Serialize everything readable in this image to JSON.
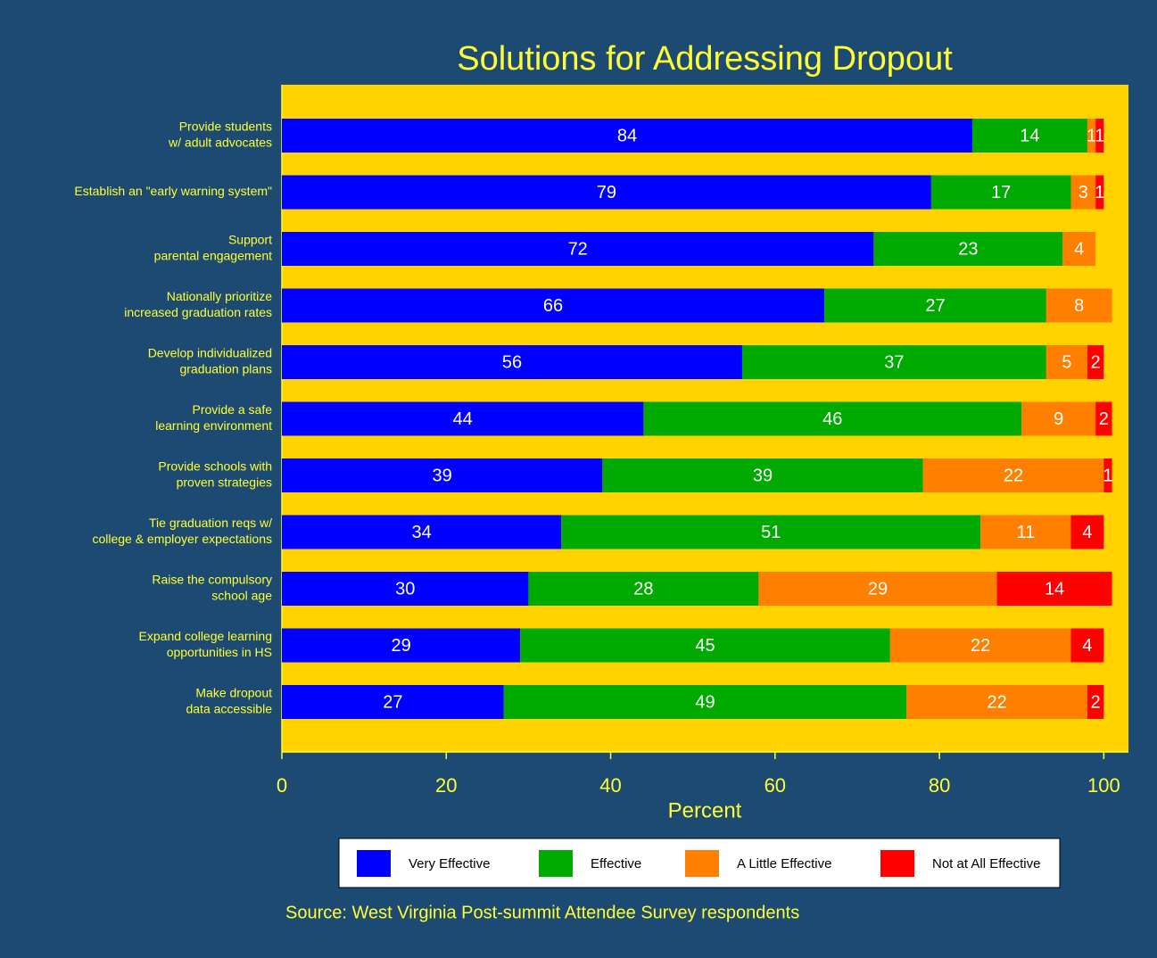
{
  "chart_data": {
    "type": "stacked-bar-horizontal",
    "title": "Solutions for Addressing Dropout",
    "x_label": "Percent",
    "source": "Source: West Virginia Post-summit Attendee Survey respondents",
    "categories": [
      [
        "Provide students",
        "w/ adult advocates"
      ],
      [
        "Establish an \"early warning system\""
      ],
      [
        "Support",
        "parental engagement"
      ],
      [
        "Nationally prioritize",
        "increased graduation rates"
      ],
      [
        "Develop individualized",
        "graduation plans"
      ],
      [
        "Provide a safe",
        "learning environment"
      ],
      [
        "Provide schools with",
        "proven strategies"
      ],
      [
        "Tie graduation reqs w/",
        "college & employer expectations"
      ],
      [
        "Raise the compulsory",
        "school age"
      ],
      [
        "Expand college learning",
        "opportunities in HS"
      ],
      [
        "Make dropout",
        "data accessible"
      ]
    ],
    "series": [
      {
        "name": "Very Effective",
        "color": "#0000ff",
        "values": [
          84,
          79,
          72,
          66,
          56,
          44,
          39,
          34,
          30,
          29,
          27
        ]
      },
      {
        "name": "Effective",
        "color": "#00aa00",
        "values": [
          14,
          17,
          23,
          27,
          37,
          46,
          39,
          51,
          28,
          45,
          49
        ]
      },
      {
        "name": "A Little Effective",
        "color": "#ff8000",
        "values": [
          1,
          3,
          4,
          8,
          5,
          9,
          22,
          11,
          29,
          22,
          22
        ]
      },
      {
        "name": "Not at All Effective",
        "color": "#ff0000",
        "values": [
          1,
          1,
          null,
          null,
          2,
          2,
          1,
          4,
          14,
          4,
          2
        ]
      }
    ],
    "xlim": [
      0,
      103
    ],
    "xticks": [
      0,
      20,
      40,
      60,
      80,
      100
    ],
    "legend": "bottom"
  }
}
